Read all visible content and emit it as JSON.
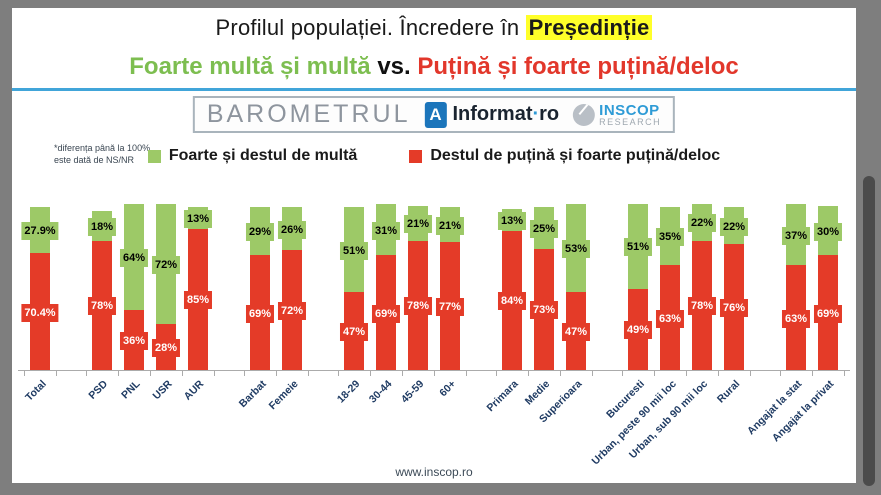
{
  "header": {
    "title_prefix": "Profilul populației. Încredere în ",
    "title_highlight": "Președinție",
    "subtitle": {
      "green": "Foarte multă și multă",
      "vs": " vs. ",
      "red": "Puțină și foarte puțină/deloc"
    }
  },
  "logo_bar": {
    "barometrul": "BAROMETRUL",
    "informat_badge": "A",
    "informat_name": "Informat",
    "informat_dot": "·",
    "informat_tld": "ro",
    "inscop_line1": "INSCOP",
    "inscop_line2": "RESEARCH"
  },
  "note": {
    "line1": "*diferența până la 100%",
    "line2": "este dată de NS/NR"
  },
  "legend": [
    {
      "label": "Foarte și destul de multă",
      "color": "#9DC967"
    },
    {
      "label": "Destul de puțină și foarte puțină/deloc",
      "color": "#E43B28"
    }
  ],
  "chart_data": {
    "type": "bar",
    "stacked": true,
    "unit": "%",
    "ylim": [
      0,
      100
    ],
    "grid": false,
    "note": "Stacked bars: red segment at bottom, green on top; remainder to 100% is NS/NR",
    "categories": [
      "Total",
      "PSD",
      "PNL",
      "USR",
      "AUR",
      "Barbat",
      "Femeie",
      "18-29",
      "30-44",
      "45-59",
      "60+",
      "Primara",
      "Medie",
      "Superioara",
      "Bucuresti",
      "Urban, peste 90 mii loc",
      "Urban, sub 90 mii loc",
      "Rural",
      "Angajat la stat",
      "Angajat la privat"
    ],
    "groups": [
      [
        0
      ],
      [
        1,
        2,
        3,
        4
      ],
      [
        5,
        6
      ],
      [
        7,
        8,
        9,
        10
      ],
      [
        11,
        12,
        13
      ],
      [
        14,
        15,
        16,
        17
      ],
      [
        18,
        19
      ]
    ],
    "series": [
      {
        "name": "Foarte și destul de multă",
        "color": "#9DC967",
        "position": "top",
        "values": [
          27.9,
          18,
          64,
          72,
          13,
          29,
          26,
          51,
          31,
          21,
          21,
          13,
          25,
          53,
          51,
          35,
          22,
          22,
          37,
          30
        ],
        "labels": [
          "27.9%",
          "18%",
          "64%",
          "72%",
          "13%",
          "29%",
          "26%",
          "51%",
          "31%",
          "21%",
          "21%",
          "13%",
          "25%",
          "53%",
          "51%",
          "35%",
          "22%",
          "22%",
          "37%",
          "30%"
        ]
      },
      {
        "name": "Destul de puțină și foarte puțină/deloc",
        "color": "#E43B28",
        "position": "bottom",
        "values": [
          70.4,
          78,
          36,
          28,
          85,
          69,
          72,
          47,
          69,
          78,
          77,
          84,
          73,
          47,
          49,
          63,
          78,
          76,
          63,
          69
        ],
        "labels": [
          "70.4%",
          "78%",
          "36%",
          "28%",
          "85%",
          "69%",
          "72%",
          "47%",
          "69%",
          "78%",
          "77%",
          "84%",
          "73%",
          "47%",
          "49%",
          "63%",
          "78%",
          "76%",
          "63%",
          "69%"
        ]
      }
    ],
    "axis_label_color": "#1F3B63"
  },
  "footer": {
    "url": "www.inscop.ro"
  },
  "colors": {
    "frame_gray": "#7E7E7E",
    "scroll_thumb": "#4B4B4B",
    "divider_blue": "#41A5D9",
    "highlight_yellow": "#FFFF29",
    "subtitle_green": "#7DBE50",
    "subtitle_red": "#E2372B",
    "bar_green": "#9DC967",
    "bar_red": "#E43B28",
    "inscop_blue": "#2E9BD6"
  }
}
